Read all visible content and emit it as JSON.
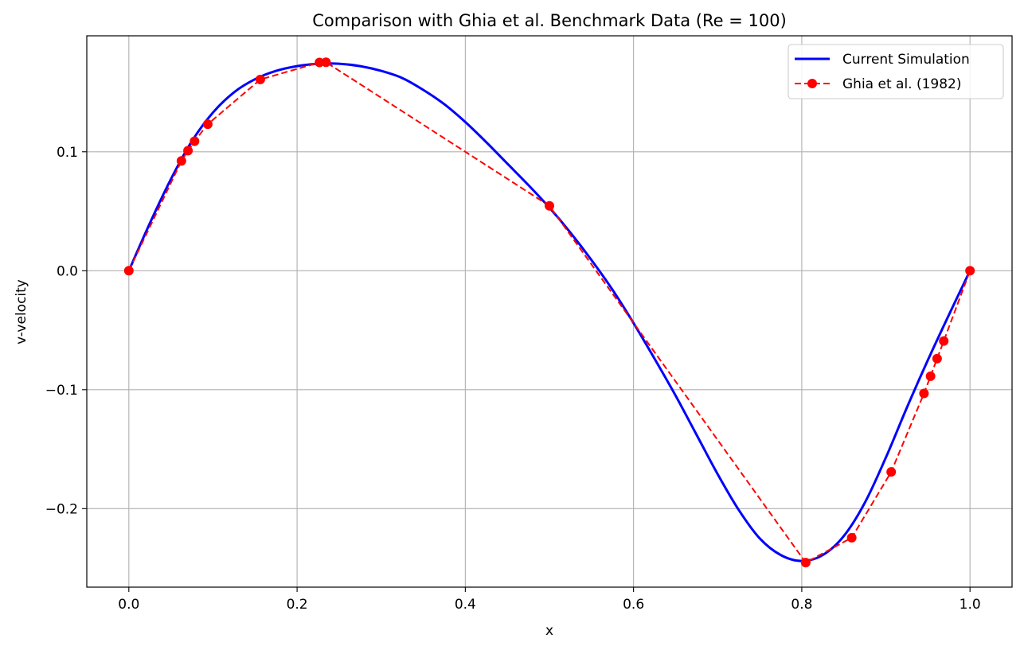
{
  "chart_data": {
    "type": "line",
    "title": "Comparison with Ghia et al. Benchmark Data (Re = 100)",
    "xlabel": "x",
    "ylabel": "v-velocity",
    "xlim": [
      -0.05,
      1.05
    ],
    "ylim": [
      -0.266,
      0.1975
    ],
    "xticks": [
      0.0,
      0.2,
      0.4,
      0.6,
      0.8,
      1.0
    ],
    "xtick_labels": [
      "0.0",
      "0.2",
      "0.4",
      "0.6",
      "0.8",
      "1.0"
    ],
    "yticks": [
      -0.2,
      -0.1,
      0.0,
      0.1
    ],
    "ytick_labels": [
      "−0.2",
      "−0.1",
      "0.0",
      "0.1"
    ],
    "grid": true,
    "legend_position": "top-right",
    "series": [
      {
        "name": "Current Simulation",
        "style": "solid",
        "color": "#0000ff",
        "x": [
          0.0,
          0.025,
          0.05,
          0.075,
          0.1,
          0.125,
          0.15,
          0.175,
          0.2,
          0.225,
          0.25,
          0.275,
          0.3,
          0.325,
          0.35,
          0.375,
          0.4,
          0.425,
          0.45,
          0.475,
          0.5,
          0.525,
          0.55,
          0.575,
          0.6,
          0.625,
          0.65,
          0.675,
          0.7,
          0.725,
          0.75,
          0.775,
          0.8,
          0.825,
          0.85,
          0.875,
          0.9,
          0.925,
          0.95,
          0.975,
          1.0
        ],
        "y": [
          0.0,
          0.04,
          0.077,
          0.109,
          0.133,
          0.15,
          0.161,
          0.168,
          0.172,
          0.174,
          0.174,
          0.172,
          0.168,
          0.162,
          0.152,
          0.14,
          0.125,
          0.108,
          0.09,
          0.072,
          0.053,
          0.032,
          0.009,
          -0.016,
          -0.044,
          -0.074,
          -0.105,
          -0.138,
          -0.171,
          -0.201,
          -0.225,
          -0.239,
          -0.244,
          -0.239,
          -0.223,
          -0.195,
          -0.157,
          -0.115,
          -0.075,
          -0.037,
          0.0
        ]
      },
      {
        "name": "Ghia et al. (1982)",
        "style": "dashed",
        "color": "#ff0000",
        "marker": "circle",
        "x": [
          0.0,
          0.0625,
          0.0703,
          0.0781,
          0.0938,
          0.1563,
          0.2266,
          0.2344,
          0.5,
          0.8047,
          0.8594,
          0.9063,
          0.9453,
          0.9531,
          0.9609,
          0.9688,
          1.0
        ],
        "y": [
          0.0,
          0.09233,
          0.10091,
          0.1089,
          0.12317,
          0.16077,
          0.17507,
          0.17527,
          0.05454,
          -0.24533,
          -0.22445,
          -0.16914,
          -0.10313,
          -0.08864,
          -0.07391,
          -0.05906,
          0.0
        ]
      }
    ]
  }
}
